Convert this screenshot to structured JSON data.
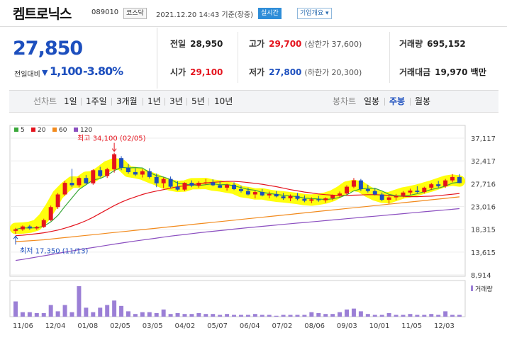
{
  "header": {
    "name": "켐트로닉스",
    "code": "089010",
    "market_badge": "코스닥",
    "asof": "2021.12.20 14:43 기준(장중)",
    "realtime_badge": "실시간",
    "company_badge": "기업개요 ▾"
  },
  "price": {
    "current": "27,850",
    "diff_label": "전일대비",
    "diff_arrow": "▼",
    "diff_value": "1,100",
    "diff_pct": "-3.80%"
  },
  "info": {
    "prev_close": {
      "label": "전일",
      "value": "28,950"
    },
    "high": {
      "label": "고가",
      "value": "29,700",
      "sub": "(상한가 37,600)"
    },
    "volume": {
      "label": "거래량",
      "value": "695,152"
    },
    "open": {
      "label": "시가",
      "value": "29,100"
    },
    "low": {
      "label": "저가",
      "value": "27,800",
      "sub": "(하한가 20,300)"
    },
    "amount": {
      "label": "거래대금",
      "value": "19,970 백만"
    }
  },
  "tabs": {
    "line_label": "선차트",
    "line_tabs": [
      "1일",
      "1주일",
      "3개월",
      "1년",
      "3년",
      "5년",
      "10년"
    ],
    "candle_label": "봉차트",
    "candle_tabs": [
      "일봉",
      "주봉",
      "월봉"
    ],
    "active_candle": "주봉"
  },
  "colors": {
    "up": "#e4131d",
    "down": "#1d4fbe",
    "ma5": "#3aa83a",
    "ma20": "#e4131d",
    "ma60": "#f28a1c",
    "ma120": "#8b4fc0",
    "volume": "#9b7fd6",
    "highlight": "#ffff00"
  },
  "chart_data": {
    "type": "candlestick",
    "legend": [
      "5",
      "20",
      "60",
      "120"
    ],
    "y_ticks": [
      37117,
      32417,
      27716,
      23016,
      18315,
      13615,
      8914
    ],
    "y_tick_labels": [
      "37,117",
      "32,417",
      "27,716",
      "23,016",
      "18,315",
      "13,615",
      "8,914"
    ],
    "ylim": [
      8914,
      37117
    ],
    "x_labels": [
      "11/06",
      "12/04",
      "01/08",
      "02/05",
      "03/05",
      "04/02",
      "05/07",
      "06/04",
      "07/02",
      "08/06",
      "09/03",
      "10/01",
      "11/05",
      "12/03"
    ],
    "annotation_high": "최고 34,100 (02/05)",
    "annotation_low": "최저 17,350 (11/13)",
    "volume_label": "거래량",
    "ohlc": [
      [
        18000,
        18600,
        17350,
        18300
      ],
      [
        18300,
        19100,
        18000,
        18900
      ],
      [
        18900,
        19200,
        18200,
        18500
      ],
      [
        18500,
        19000,
        18200,
        18800
      ],
      [
        18800,
        20500,
        18600,
        20200
      ],
      [
        20200,
        23200,
        20000,
        22900
      ],
      [
        22900,
        25800,
        22500,
        25500
      ],
      [
        25500,
        28300,
        25200,
        27900
      ],
      [
        27900,
        30800,
        27000,
        27400
      ],
      [
        27400,
        29200,
        27000,
        28900
      ],
      [
        28900,
        29500,
        27600,
        27800
      ],
      [
        27800,
        30700,
        27500,
        30500
      ],
      [
        30500,
        31200,
        29000,
        29300
      ],
      [
        29300,
        31000,
        28900,
        30700
      ],
      [
        30700,
        34100,
        30000,
        33800
      ],
      [
        33000,
        33400,
        30500,
        31000
      ],
      [
        31000,
        31800,
        29800,
        30100
      ],
      [
        30100,
        30900,
        29300,
        29600
      ],
      [
        29600,
        30700,
        29000,
        30300
      ],
      [
        30300,
        30900,
        28800,
        29100
      ],
      [
        29100,
        29800,
        27000,
        27800
      ],
      [
        27800,
        29000,
        26800,
        28700
      ],
      [
        28700,
        29200,
        26800,
        27100
      ],
      [
        27100,
        28200,
        26300,
        26500
      ],
      [
        26500,
        28000,
        26200,
        27900
      ],
      [
        27900,
        28400,
        27000,
        27300
      ],
      [
        27300,
        28200,
        26900,
        27900
      ],
      [
        27900,
        28700,
        27500,
        28000
      ],
      [
        28000,
        28600,
        27200,
        27400
      ],
      [
        27400,
        28200,
        26800,
        26900
      ],
      [
        26900,
        27700,
        26300,
        27500
      ],
      [
        27500,
        28000,
        26400,
        26600
      ],
      [
        26600,
        27300,
        25900,
        26200
      ],
      [
        26200,
        26900,
        25300,
        25500
      ],
      [
        25500,
        26400,
        24700,
        26000
      ],
      [
        26000,
        26600,
        25100,
        25300
      ],
      [
        25300,
        26100,
        24700,
        25600
      ],
      [
        25600,
        26200,
        24900,
        25100
      ],
      [
        25100,
        25800,
        24400,
        24700
      ],
      [
        24700,
        25500,
        24100,
        25200
      ],
      [
        25200,
        25800,
        24300,
        24600
      ],
      [
        24600,
        25300,
        23900,
        24200
      ],
      [
        24200,
        24900,
        23700,
        24500
      ],
      [
        24500,
        25200,
        24000,
        24300
      ],
      [
        24300,
        24900,
        23800,
        24700
      ],
      [
        24700,
        25500,
        24300,
        25300
      ],
      [
        25300,
        26100,
        24900,
        25700
      ],
      [
        25700,
        27400,
        25500,
        27100
      ],
      [
        27100,
        28900,
        26800,
        28400
      ],
      [
        28400,
        28700,
        26200,
        26600
      ],
      [
        26600,
        27500,
        25900,
        26200
      ],
      [
        26200,
        26800,
        25300,
        25500
      ],
      [
        25500,
        25900,
        24100,
        24400
      ],
      [
        24400,
        25300,
        23600,
        24900
      ],
      [
        24900,
        25600,
        24300,
        25200
      ],
      [
        25200,
        26200,
        24900,
        25900
      ],
      [
        25900,
        26700,
        25400,
        26300
      ],
      [
        26300,
        27200,
        25800,
        26000
      ],
      [
        26000,
        27100,
        25700,
        26900
      ],
      [
        26900,
        27900,
        26400,
        27600
      ],
      [
        27600,
        28300,
        26900,
        27200
      ],
      [
        27200,
        28700,
        26900,
        28400
      ],
      [
        28400,
        29700,
        28000,
        29100
      ],
      [
        29100,
        29700,
        27800,
        27850
      ]
    ],
    "volume": [
      1.7,
      0.5,
      0.5,
      0.4,
      0.4,
      1.3,
      0.6,
      1.3,
      0.5,
      3.4,
      1.0,
      0.5,
      1.0,
      1.3,
      1.8,
      1.2,
      0.6,
      0.3,
      0.5,
      0.5,
      0.4,
      0.8,
      0.3,
      0.4,
      0.3,
      0.3,
      0.4,
      0.3,
      0.3,
      0.2,
      0.3,
      0.2,
      0.2,
      0.2,
      0.3,
      0.2,
      0.2,
      0.1,
      0.2,
      0.2,
      0.2,
      0.2,
      0.5,
      0.4,
      0.3,
      0.3,
      0.5,
      0.8,
      0.9,
      0.6,
      0.3,
      0.2,
      0.2,
      0.4,
      0.2,
      0.2,
      0.3,
      0.2,
      0.2,
      0.3,
      0.2,
      0.6,
      0.2,
      0.2
    ],
    "ma120": [
      11900,
      12100,
      12350,
      12600,
      12850,
      13100,
      13350,
      13600,
      13850,
      14100,
      14330,
      14560,
      14790,
      15020,
      15250,
      15480,
      15700,
      15900,
      16100,
      16300,
      16500,
      16700,
      16900,
      17080,
      17250,
      17420,
      17590,
      17750,
      17900,
      18050,
      18200,
      18350,
      18500,
      18640,
      18780,
      18920,
      19060,
      19200,
      19330,
      19460,
      19590,
      19720,
      19850,
      19980,
      20110,
      20240,
      20370,
      20500,
      20630,
      20760,
      20890,
      21020,
      21150,
      21280,
      21410,
      21540,
      21670,
      21800,
      21930,
      22060,
      22190,
      22320,
      22450,
      22580
    ],
    "ma60": [
      15800,
      15850,
      15950,
      16050,
      16150,
      16300,
      16450,
      16600,
      16750,
      16900,
      17050,
      17200,
      17350,
      17500,
      17650,
      17800,
      17950,
      18100,
      18250,
      18400,
      18550,
      18700,
      18850,
      19000,
      19150,
      19300,
      19450,
      19600,
      19750,
      19900,
      20050,
      20200,
      20350,
      20500,
      20650,
      20800,
      20950,
      21100,
      21250,
      21400,
      21550,
      21700,
      21850,
      22000,
      22150,
      22300,
      22450,
      22600,
      22750,
      22900,
      23050,
      23200,
      23350,
      23500,
      23650,
      23800,
      23950,
      24100,
      24250,
      24400,
      24550,
      24700,
      24850,
      25000
    ],
    "ma20": [
      17000,
      17100,
      17250,
      17400,
      17600,
      17850,
      18150,
      18550,
      19000,
      19500,
      20100,
      20800,
      21600,
      22400,
      23200,
      23900,
      24500,
      25000,
      25500,
      25900,
      26200,
      26500,
      26800,
      27100,
      27300,
      27500,
      27700,
      27850,
      28000,
      28100,
      28200,
      28200,
      28100,
      27950,
      27800,
      27600,
      27350,
      27100,
      26800,
      26500,
      26250,
      26000,
      25800,
      25600,
      25450,
      25350,
      25300,
      25300,
      25350,
      25400,
      25450,
      25450,
      25400,
      25300,
      25200,
      25100,
      25050,
      25050,
      25100,
      25150,
      25250,
      25400,
      25550,
      25700
    ]
  }
}
